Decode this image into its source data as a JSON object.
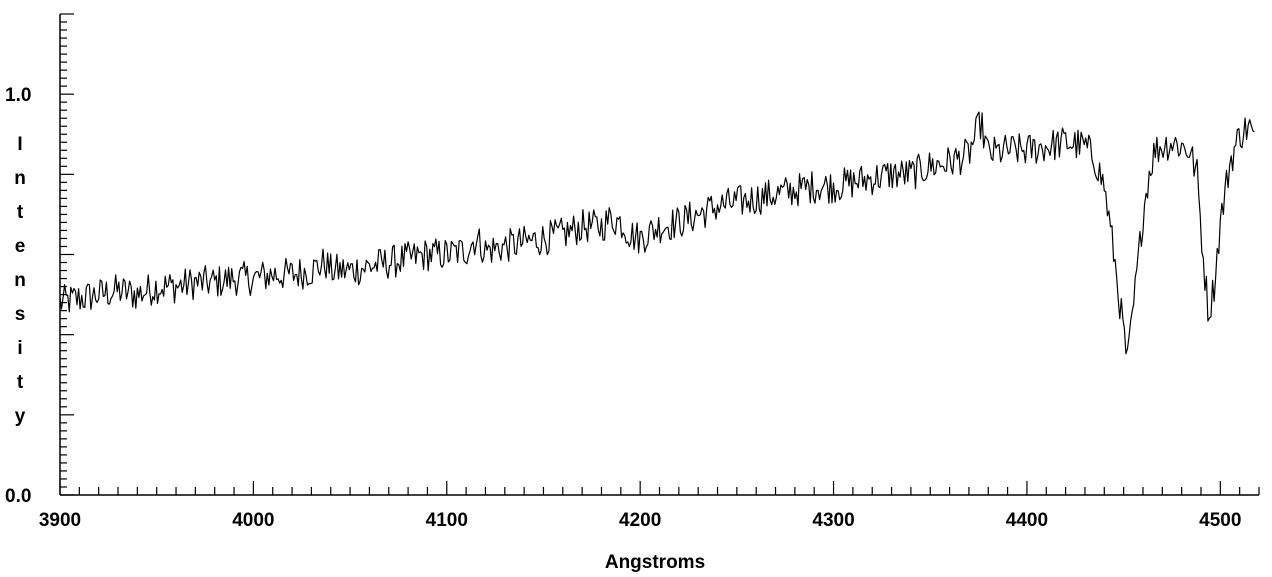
{
  "chart_data": {
    "type": "line",
    "title": "",
    "xlabel": "Angstroms",
    "ylabel": "Intensity",
    "xlim": [
      3900,
      4520
    ],
    "ylim": [
      0.0,
      1.2
    ],
    "grid": false,
    "x_ticks": [
      3900,
      4000,
      4100,
      4200,
      4300,
      4400,
      4500
    ],
    "x_tick_labels": [
      "3900",
      "4000",
      "4100",
      "4200",
      "4300",
      "4400",
      "4500"
    ],
    "y_ticks": [
      0.0,
      1.0
    ],
    "y_tick_labels": [
      "0.0",
      "1.0"
    ],
    "line_color": "#000000",
    "series": [
      {
        "x": [
          3900,
          3910,
          3920,
          3930,
          3940,
          3950,
          3960,
          3970,
          3980,
          3990,
          4000,
          4010,
          4020,
          4030,
          4037,
          4040,
          4050,
          4060,
          4070,
          4080,
          4090,
          4100,
          4110,
          4115,
          4120,
          4130,
          4140,
          4150,
          4160,
          4170,
          4180,
          4185,
          4190,
          4195,
          4200,
          4210,
          4220,
          4230,
          4240,
          4250,
          4260,
          4270,
          4280,
          4290,
          4300,
          4310,
          4320,
          4330,
          4340,
          4350,
          4360,
          4370,
          4376,
          4380,
          4390,
          4400,
          4410,
          4420,
          4430,
          4435,
          4440,
          4445,
          4448,
          4452,
          4456,
          4460,
          4463,
          4466,
          4470,
          4475,
          4480,
          4484,
          4488,
          4491,
          4494,
          4497,
          4500,
          4505,
          4510,
          4515,
          4518
        ],
        "y": [
          0.48,
          0.49,
          0.5,
          0.51,
          0.5,
          0.52,
          0.52,
          0.53,
          0.53,
          0.54,
          0.54,
          0.55,
          0.55,
          0.56,
          0.58,
          0.56,
          0.56,
          0.57,
          0.58,
          0.59,
          0.6,
          0.6,
          0.61,
          0.64,
          0.61,
          0.62,
          0.63,
          0.64,
          0.65,
          0.67,
          0.67,
          0.69,
          0.68,
          0.65,
          0.64,
          0.67,
          0.68,
          0.7,
          0.72,
          0.73,
          0.74,
          0.75,
          0.76,
          0.77,
          0.77,
          0.78,
          0.79,
          0.8,
          0.8,
          0.82,
          0.83,
          0.85,
          0.93,
          0.85,
          0.86,
          0.86,
          0.87,
          0.88,
          0.87,
          0.84,
          0.77,
          0.6,
          0.48,
          0.33,
          0.51,
          0.7,
          0.8,
          0.86,
          0.87,
          0.88,
          0.87,
          0.86,
          0.8,
          0.6,
          0.45,
          0.53,
          0.68,
          0.83,
          0.9,
          0.92,
          0.88
        ]
      }
    ]
  }
}
